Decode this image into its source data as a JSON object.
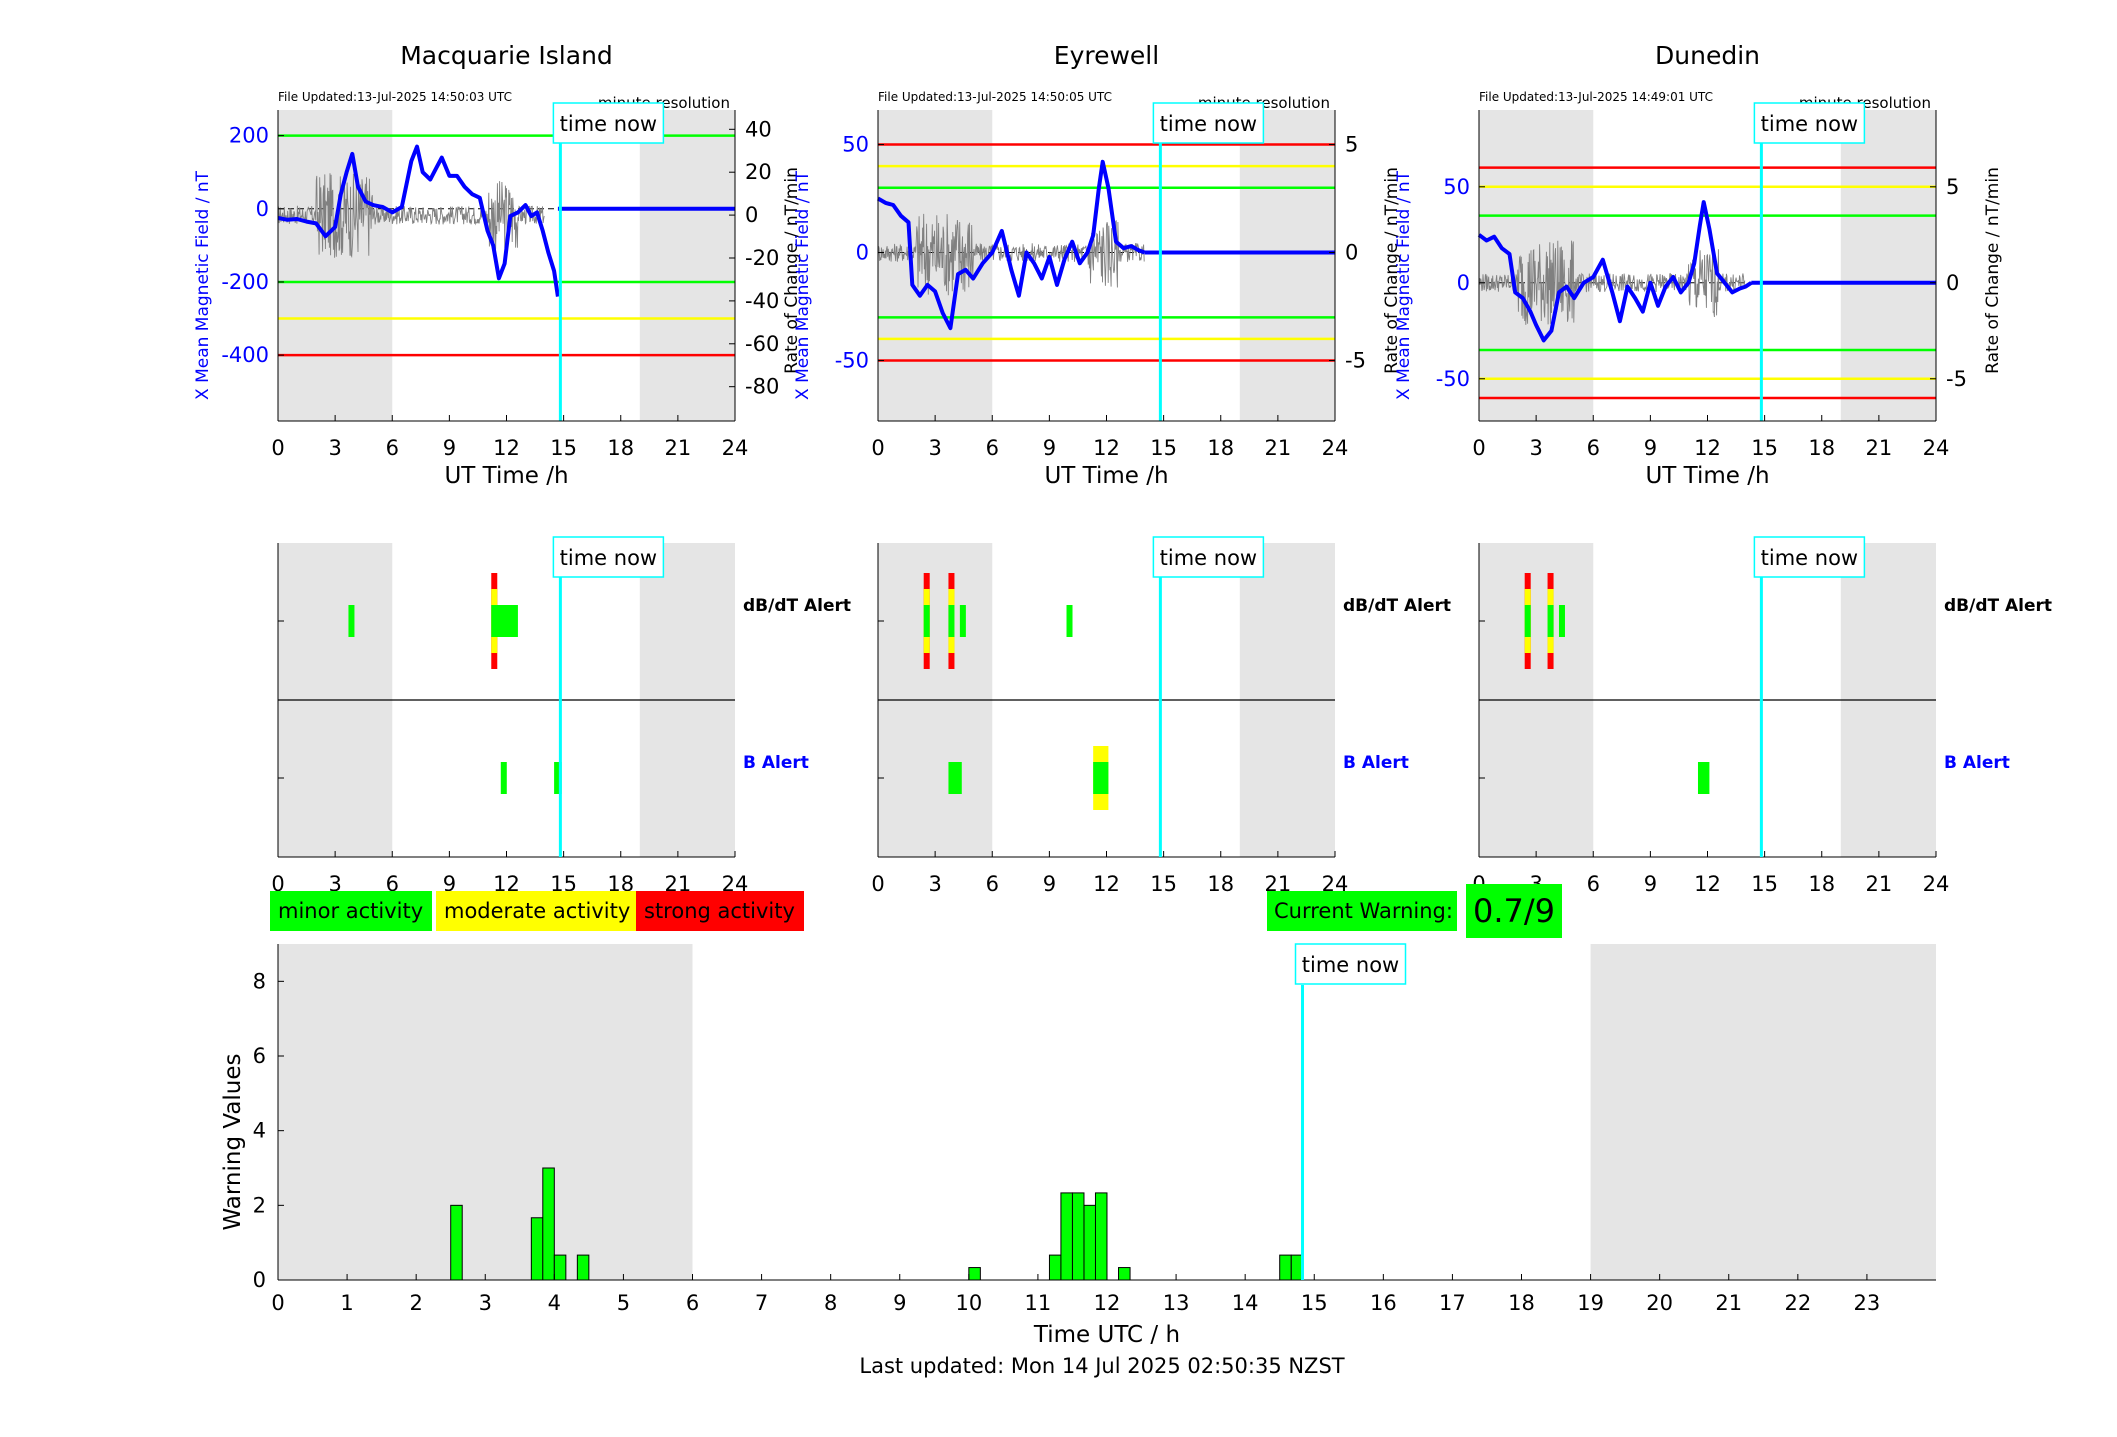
{
  "colors": {
    "minor": "#00ff00",
    "moderate": "#ffff00",
    "strong": "#ff0000",
    "now_line": "#00ffff",
    "field_line": "#0000ff",
    "night_shade": "#e5e5e5",
    "roc_trace": "#808080"
  },
  "labels": {
    "time_now": "time now",
    "ut_axis": "UT Time /h",
    "x_field_axis": "X Mean Magnetic Field / nT",
    "roc_axis": "Rate of Change / nT/min",
    "minute_resolution": "minute resolution",
    "dbdt_alert": "dB/dT Alert",
    "b_alert": "B Alert"
  },
  "legend": {
    "minor": "minor activity",
    "moderate": "moderate activity",
    "strong": "strong activity"
  },
  "current_warning": {
    "label": "Current Warning:",
    "value": "0.7/9"
  },
  "footer": "Last updated: Mon 14 Jul 2025 02:50:35 NZST",
  "chart_data": [
    {
      "type": "line",
      "title": "Macquarie Island",
      "file_updated": "File Updated:13-Jul-2025 14:50:03 UTC",
      "xlabel": "UT Time /h",
      "xlim": [
        0,
        24
      ],
      "x_ticks": [
        0,
        3,
        6,
        9,
        12,
        15,
        18,
        21,
        24
      ],
      "ylabel": "X Mean Magnetic Field / nT",
      "ylim": [
        -580,
        270
      ],
      "y_ticks": [
        -400,
        -200,
        0,
        200
      ],
      "y2label": "Rate of Change / nT/min",
      "y2lim": [
        -96,
        49
      ],
      "y2_ticks": [
        -80,
        -60,
        -40,
        -20,
        0,
        20,
        40
      ],
      "thresholds": [
        {
          "value": 200,
          "color": "green"
        },
        {
          "value": -200,
          "color": "green"
        },
        {
          "value": -300,
          "color": "yellow"
        },
        {
          "value": -400,
          "color": "red"
        }
      ],
      "night_shading": [
        [
          0,
          6
        ],
        [
          19,
          24
        ]
      ],
      "time_now": 14.83,
      "series": [
        {
          "values": [
            [
              0,
              -25
            ],
            [
              0.5,
              -30
            ],
            [
              1,
              -28
            ],
            [
              1.5,
              -35
            ],
            [
              2,
              -40
            ],
            [
              2.5,
              -75
            ],
            [
              3,
              -50
            ],
            [
              3.3,
              40
            ],
            [
              3.6,
              100
            ],
            [
              3.9,
              150
            ],
            [
              4.2,
              60
            ],
            [
              4.6,
              20
            ],
            [
              5,
              10
            ],
            [
              5.5,
              5
            ],
            [
              6,
              -10
            ],
            [
              6.5,
              5
            ],
            [
              7,
              130
            ],
            [
              7.3,
              170
            ],
            [
              7.6,
              100
            ],
            [
              8,
              80
            ],
            [
              8.3,
              110
            ],
            [
              8.6,
              140
            ],
            [
              9,
              90
            ],
            [
              9.4,
              90
            ],
            [
              9.8,
              60
            ],
            [
              10.2,
              40
            ],
            [
              10.6,
              30
            ],
            [
              11,
              -60
            ],
            [
              11.3,
              -100
            ],
            [
              11.6,
              -190
            ],
            [
              11.9,
              -150
            ],
            [
              12.2,
              -20
            ],
            [
              12.6,
              -10
            ],
            [
              13,
              10
            ],
            [
              13.3,
              -20
            ],
            [
              13.6,
              -10
            ],
            [
              13.9,
              -60
            ],
            [
              14.2,
              -120
            ],
            [
              14.5,
              -170
            ],
            [
              14.7,
              -240
            ],
            [
              14.83,
              -5
            ],
            [
              24,
              0
            ]
          ]
        }
      ]
    },
    {
      "type": "line",
      "title": "Eyrewell",
      "file_updated": "File Updated:13-Jul-2025 14:50:05 UTC",
      "xlabel": "UT Time /h",
      "xlim": [
        0,
        24
      ],
      "x_ticks": [
        0,
        3,
        6,
        9,
        12,
        15,
        18,
        21,
        24
      ],
      "ylabel": "X Mean Magnetic Field / nT",
      "ylim": [
        -78,
        66
      ],
      "y_ticks": [
        -50,
        0,
        50
      ],
      "y2label": "Rate of Change / nT/min",
      "y2lim": [
        -7.8,
        6.6
      ],
      "y2_ticks": [
        -5,
        0,
        5
      ],
      "thresholds": [
        {
          "value": 50,
          "color": "red"
        },
        {
          "value": 40,
          "color": "yellow"
        },
        {
          "value": 30,
          "color": "green"
        },
        {
          "value": -30,
          "color": "green"
        },
        {
          "value": -40,
          "color": "yellow"
        },
        {
          "value": -50,
          "color": "red"
        }
      ],
      "night_shading": [
        [
          0,
          6
        ],
        [
          19,
          24
        ]
      ],
      "time_now": 14.83,
      "series": [
        {
          "values": [
            [
              0,
              25
            ],
            [
              0.4,
              23
            ],
            [
              0.8,
              22
            ],
            [
              1.2,
              17
            ],
            [
              1.6,
              14
            ],
            [
              1.8,
              -15
            ],
            [
              2.2,
              -20
            ],
            [
              2.6,
              -15
            ],
            [
              3,
              -18
            ],
            [
              3.4,
              -28
            ],
            [
              3.8,
              -35
            ],
            [
              4.2,
              -10
            ],
            [
              4.6,
              -8
            ],
            [
              5,
              -12
            ],
            [
              5.5,
              -5
            ],
            [
              6,
              0
            ],
            [
              6.5,
              10
            ],
            [
              7,
              -8
            ],
            [
              7.4,
              -20
            ],
            [
              7.8,
              0
            ],
            [
              8.2,
              -5
            ],
            [
              8.6,
              -12
            ],
            [
              9,
              -2
            ],
            [
              9.4,
              -15
            ],
            [
              9.8,
              -3
            ],
            [
              10.2,
              5
            ],
            [
              10.6,
              -5
            ],
            [
              11,
              0
            ],
            [
              11.3,
              8
            ],
            [
              11.6,
              30
            ],
            [
              11.8,
              42
            ],
            [
              12.1,
              30
            ],
            [
              12.5,
              5
            ],
            [
              12.9,
              2
            ],
            [
              13.3,
              3
            ],
            [
              13.7,
              1
            ],
            [
              14,
              0
            ],
            [
              24,
              0
            ]
          ]
        }
      ]
    },
    {
      "type": "line",
      "title": "Dunedin",
      "file_updated": "File Updated:13-Jul-2025 14:49:01 UTC",
      "xlabel": "UT Time /h",
      "xlim": [
        0,
        24
      ],
      "x_ticks": [
        0,
        3,
        6,
        9,
        12,
        15,
        18,
        21,
        24
      ],
      "ylabel": "X Mean Magnetic Field / nT",
      "ylim": [
        -72,
        90
      ],
      "y_ticks": [
        -50,
        0,
        50
      ],
      "y2_ticks": [
        -5,
        0,
        5
      ],
      "y2lim": [
        -7.2,
        9.0
      ],
      "thresholds": [
        {
          "value": 60,
          "color": "red"
        },
        {
          "value": 50,
          "color": "yellow"
        },
        {
          "value": 35,
          "color": "green"
        },
        {
          "value": -35,
          "color": "green"
        },
        {
          "value": -50,
          "color": "yellow"
        },
        {
          "value": -60,
          "color": "red"
        }
      ],
      "night_shading": [
        [
          0,
          6
        ],
        [
          19,
          24
        ]
      ],
      "time_now": 14.83,
      "series": [
        {
          "values": [
            [
              0,
              25
            ],
            [
              0.4,
              22
            ],
            [
              0.8,
              24
            ],
            [
              1.2,
              18
            ],
            [
              1.6,
              15
            ],
            [
              1.9,
              -5
            ],
            [
              2.3,
              -8
            ],
            [
              2.7,
              -15
            ],
            [
              3,
              -22
            ],
            [
              3.4,
              -30
            ],
            [
              3.8,
              -25
            ],
            [
              4.2,
              -5
            ],
            [
              4.6,
              -2
            ],
            [
              5,
              -8
            ],
            [
              5.5,
              0
            ],
            [
              6,
              3
            ],
            [
              6.5,
              12
            ],
            [
              7,
              -5
            ],
            [
              7.4,
              -20
            ],
            [
              7.8,
              -2
            ],
            [
              8.2,
              -8
            ],
            [
              8.6,
              -15
            ],
            [
              9,
              0
            ],
            [
              9.4,
              -12
            ],
            [
              9.8,
              -2
            ],
            [
              10.2,
              3
            ],
            [
              10.6,
              -5
            ],
            [
              11,
              0
            ],
            [
              11.3,
              10
            ],
            [
              11.6,
              30
            ],
            [
              11.8,
              42
            ],
            [
              12.1,
              28
            ],
            [
              12.5,
              5
            ],
            [
              12.9,
              0
            ],
            [
              13.3,
              -5
            ],
            [
              13.7,
              -3
            ],
            [
              14,
              -2
            ],
            [
              14.3,
              0
            ],
            [
              24,
              0
            ]
          ]
        }
      ]
    },
    {
      "type": "bar",
      "title": "",
      "xlabel": "",
      "xlim": [
        0,
        24
      ],
      "x_ticks": [
        0,
        3,
        6,
        9,
        12,
        15,
        18,
        21,
        24
      ],
      "row_labels": [
        "dB/dT Alert",
        "B Alert"
      ],
      "night_shading": [
        [
          0,
          6
        ],
        [
          19,
          24
        ]
      ],
      "time_now": 14.83,
      "dbdt_alerts": [
        {
          "start": 3.7,
          "end": 4.0,
          "level": "minor"
        },
        {
          "start": 11.2,
          "end": 11.5,
          "level": "strong"
        },
        {
          "start": 11.5,
          "end": 12.6,
          "level": "minor"
        }
      ],
      "b_alerts": [
        {
          "start": 11.7,
          "end": 12.0,
          "level": "minor"
        },
        {
          "start": 14.5,
          "end": 14.9,
          "level": "minor"
        }
      ]
    },
    {
      "type": "bar",
      "title": "",
      "xlabel": "",
      "xlim": [
        0,
        24
      ],
      "x_ticks": [
        0,
        3,
        6,
        9,
        12,
        15,
        18,
        21,
        24
      ],
      "row_labels": [
        "dB/dT Alert",
        "B Alert"
      ],
      "night_shading": [
        [
          0,
          6
        ],
        [
          19,
          24
        ]
      ],
      "time_now": 14.83,
      "dbdt_alerts": [
        {
          "start": 2.4,
          "end": 2.7,
          "level": "strong"
        },
        {
          "start": 3.7,
          "end": 4.0,
          "level": "strong"
        },
        {
          "start": 4.3,
          "end": 4.6,
          "level": "minor"
        },
        {
          "start": 9.9,
          "end": 10.2,
          "level": "minor"
        }
      ],
      "b_alerts": [
        {
          "start": 3.7,
          "end": 4.4,
          "level": "minor"
        },
        {
          "start": 11.3,
          "end": 12.1,
          "level": "moderate"
        }
      ]
    },
    {
      "type": "bar",
      "title": "",
      "xlabel": "",
      "xlim": [
        0,
        24
      ],
      "x_ticks": [
        0,
        3,
        6,
        9,
        12,
        15,
        18,
        21,
        24
      ],
      "row_labels": [
        "dB/dT Alert",
        "B Alert"
      ],
      "night_shading": [
        [
          0,
          6
        ],
        [
          19,
          24
        ]
      ],
      "time_now": 14.83,
      "dbdt_alerts": [
        {
          "start": 2.4,
          "end": 2.7,
          "level": "strong"
        },
        {
          "start": 3.6,
          "end": 3.9,
          "level": "strong"
        },
        {
          "start": 4.2,
          "end": 4.5,
          "level": "minor"
        }
      ],
      "b_alerts": [
        {
          "start": 11.5,
          "end": 12.1,
          "level": "minor"
        }
      ]
    },
    {
      "type": "bar",
      "title": "",
      "xlabel": "Time UTC / h",
      "ylabel": "Warning Values",
      "xlim": [
        0,
        24
      ],
      "ylim": [
        0,
        9
      ],
      "x_ticks": [
        0,
        1,
        2,
        3,
        4,
        5,
        6,
        7,
        8,
        9,
        10,
        11,
        12,
        13,
        14,
        15,
        16,
        17,
        18,
        19,
        20,
        21,
        22,
        23
      ],
      "y_ticks": [
        0,
        2,
        4,
        6,
        8
      ],
      "night_shading": [
        [
          0,
          6
        ],
        [
          19,
          24
        ]
      ],
      "time_now": 14.83,
      "bar_width": 0.1667,
      "bars": [
        {
          "x": 2.5,
          "value": 2.0
        },
        {
          "x": 3.667,
          "value": 1.667
        },
        {
          "x": 3.833,
          "value": 3.0
        },
        {
          "x": 4.0,
          "value": 0.667
        },
        {
          "x": 4.333,
          "value": 0.667
        },
        {
          "x": 10.0,
          "value": 0.333
        },
        {
          "x": 11.167,
          "value": 0.667
        },
        {
          "x": 11.333,
          "value": 2.333
        },
        {
          "x": 11.5,
          "value": 2.333
        },
        {
          "x": 11.667,
          "value": 2.0
        },
        {
          "x": 11.833,
          "value": 2.333
        },
        {
          "x": 12.167,
          "value": 0.333
        },
        {
          "x": 14.5,
          "value": 0.667
        },
        {
          "x": 14.667,
          "value": 0.667
        }
      ]
    }
  ]
}
